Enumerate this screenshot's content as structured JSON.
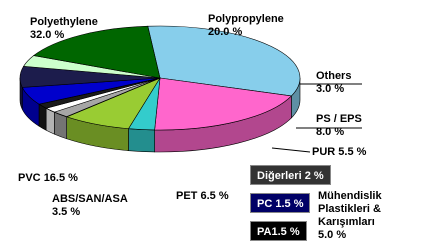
{
  "chart_data": {
    "type": "pie",
    "categories": [
      "Polyethylene",
      "Polypropylene",
      "Others",
      "PS / EPS",
      "Mühendislik Plastikleri & Karışımları",
      "PUR",
      "PET",
      "ABS/SAN/ASA",
      "PVC"
    ],
    "values": [
      32.0,
      20.0,
      3.0,
      8.0,
      5.0,
      5.5,
      6.5,
      3.5,
      16.5
    ],
    "value_labels": [
      "32.0 %",
      "20.0 %",
      "3.0 %",
      "8.0 %",
      "5.0 %",
      "5.5 %",
      "6.5 %",
      "3.5 %",
      "16.5 %"
    ],
    "colors": [
      "#87ceeb",
      "#ff66cc",
      "#33cccc",
      "#99cc33",
      "#a6a6a6",
      "#0000cc",
      "#1c1c4c",
      "#ccffcc",
      "#006600"
    ],
    "breakdown": {
      "categories": [
        "Diğerleri",
        "PC",
        "PA"
      ],
      "values": [
        2,
        1.5,
        1.5
      ],
      "value_labels": [
        "2 %",
        "1.5 %",
        "1.5 %"
      ],
      "colors": [
        "#a6a6a6",
        "#ffffff",
        "#1a1a1a"
      ],
      "box_colors": [
        "#333333",
        "#000066",
        "#000000"
      ]
    }
  }
}
